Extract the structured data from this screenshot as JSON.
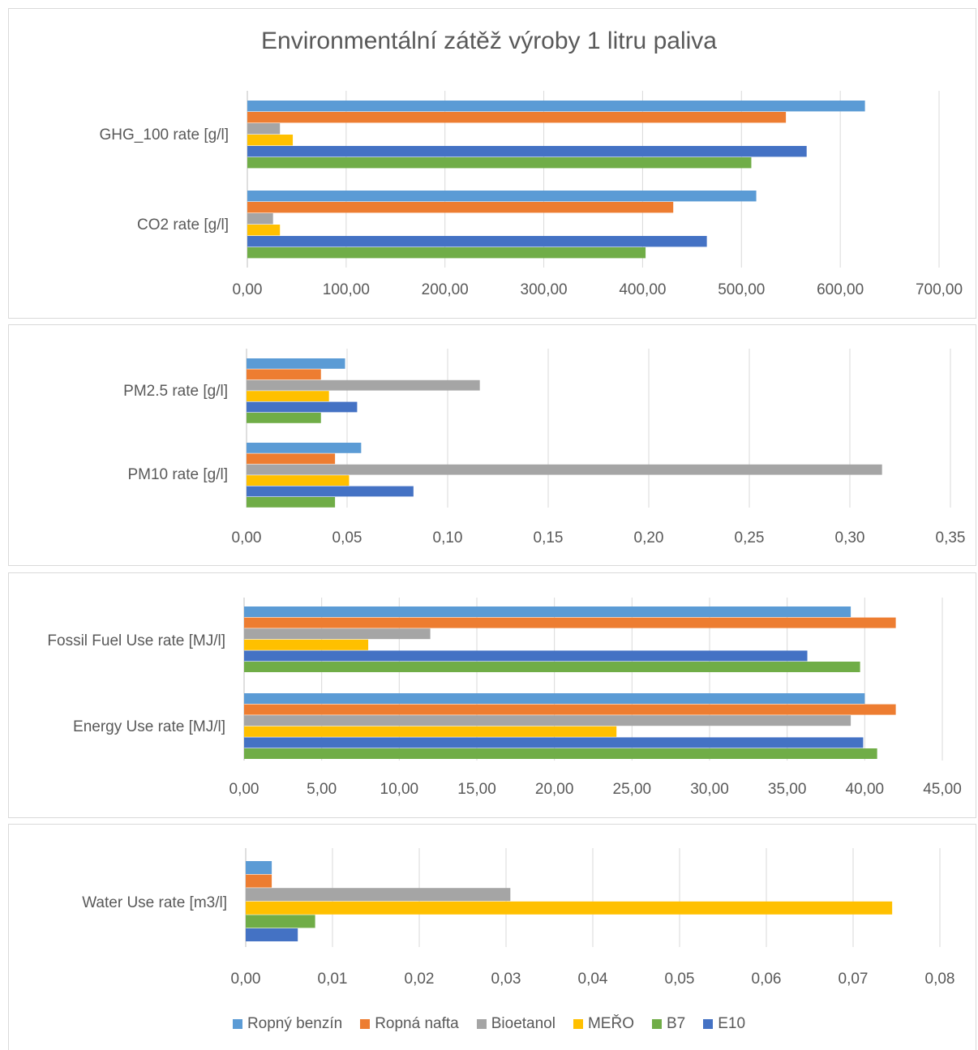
{
  "title": "Environmentální zátěž výroby 1 litru paliva",
  "series": [
    {
      "name": "Ropný benzín",
      "color": "#5B9BD5"
    },
    {
      "name": "Ropná nafta",
      "color": "#ED7D31"
    },
    {
      "name": "Bioetanol",
      "color": "#A5A5A5"
    },
    {
      "name": "MEŘO",
      "color": "#FFC000"
    },
    {
      "name": "B7",
      "color": "#70AD47"
    },
    {
      "name": "E10",
      "color": "#4472C4"
    }
  ],
  "chart_data": [
    {
      "type": "bar",
      "orientation": "horizontal",
      "categories": [
        "GHG_100 rate [g/l]",
        "CO2 rate [g/l]"
      ],
      "xlim": [
        0,
        700
      ],
      "ticks": [
        "0,00",
        "100,00",
        "200,00",
        "300,00",
        "400,00",
        "500,00",
        "600,00",
        "700,00"
      ],
      "series": [
        {
          "name": "Ropný benzín",
          "values": [
            625,
            515
          ]
        },
        {
          "name": "Ropná nafta",
          "values": [
            545,
            431
          ]
        },
        {
          "name": "Bioetanol",
          "values": [
            33,
            26
          ]
        },
        {
          "name": "MEŘO",
          "values": [
            46,
            33
          ]
        },
        {
          "name": "E10",
          "values": [
            566,
            465
          ]
        },
        {
          "name": "B7",
          "values": [
            510,
            403
          ]
        }
      ],
      "grid": true
    },
    {
      "type": "bar",
      "orientation": "horizontal",
      "categories": [
        "PM2.5 rate [g/l]",
        "PM10 rate [g/l]"
      ],
      "xlim": [
        0,
        0.35
      ],
      "ticks": [
        "0,00",
        "0,05",
        "0,10",
        "0,15",
        "0,20",
        "0,25",
        "0,30",
        "0,35"
      ],
      "series": [
        {
          "name": "Ropný benzín",
          "values": [
            0.049,
            0.057
          ]
        },
        {
          "name": "Ropná nafta",
          "values": [
            0.037,
            0.044
          ]
        },
        {
          "name": "Bioetanol",
          "values": [
            0.116,
            0.316
          ]
        },
        {
          "name": "MEŘO",
          "values": [
            0.041,
            0.051
          ]
        },
        {
          "name": "E10",
          "values": [
            0.055,
            0.083
          ]
        },
        {
          "name": "B7",
          "values": [
            0.037,
            0.044
          ]
        }
      ],
      "grid": true
    },
    {
      "type": "bar",
      "orientation": "horizontal",
      "categories": [
        "Fossil Fuel Use rate [MJ/l]",
        "Energy Use rate [MJ/l]"
      ],
      "xlim": [
        0,
        45
      ],
      "ticks": [
        "0,00",
        "5,00",
        "10,00",
        "15,00",
        "20,00",
        "25,00",
        "30,00",
        "35,00",
        "40,00",
        "45,00"
      ],
      "series": [
        {
          "name": "Ropný benzín",
          "values": [
            39.1,
            40.0
          ]
        },
        {
          "name": "Ropná nafta",
          "values": [
            42.0,
            42.0
          ]
        },
        {
          "name": "Bioetanol",
          "values": [
            12.0,
            39.1
          ]
        },
        {
          "name": "MEŘO",
          "values": [
            8.0,
            24.0
          ]
        },
        {
          "name": "E10",
          "values": [
            36.3,
            39.9
          ]
        },
        {
          "name": "B7",
          "values": [
            39.7,
            40.8
          ]
        }
      ],
      "grid": true
    },
    {
      "type": "bar",
      "orientation": "horizontal",
      "categories": [
        "Water Use rate [m3/l]"
      ],
      "xlim": [
        0,
        0.08
      ],
      "ticks": [
        "0,00",
        "0,01",
        "0,02",
        "0,03",
        "0,04",
        "0,05",
        "0,06",
        "0,07",
        "0,08"
      ],
      "series": [
        {
          "name": "Ropný benzín",
          "values": [
            0.003
          ]
        },
        {
          "name": "Ropná nafta",
          "values": [
            0.003
          ]
        },
        {
          "name": "Bioetanol",
          "values": [
            0.0305
          ]
        },
        {
          "name": "MEŘO",
          "values": [
            0.0745
          ]
        },
        {
          "name": "B7",
          "values": [
            0.008
          ]
        },
        {
          "name": "E10",
          "values": [
            0.006
          ]
        }
      ],
      "grid": true
    }
  ]
}
